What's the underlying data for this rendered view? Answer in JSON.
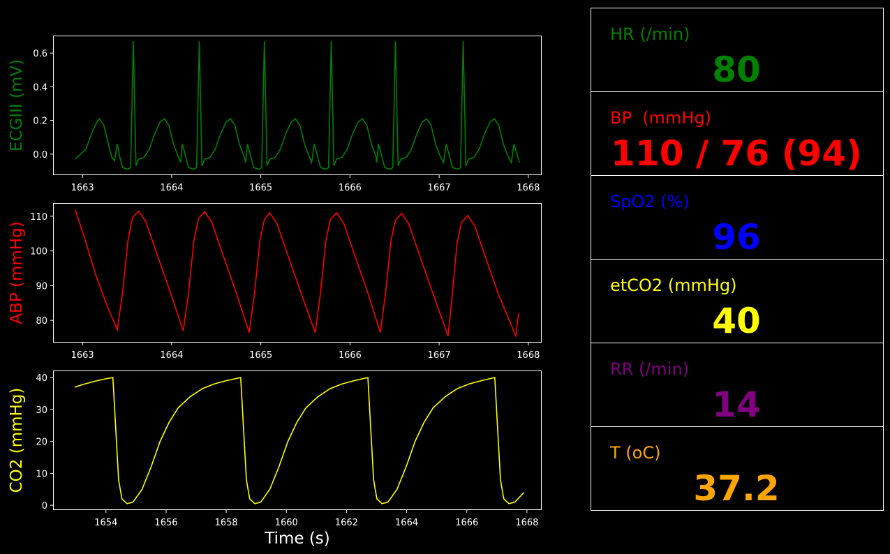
{
  "chart_data": [
    {
      "type": "line",
      "ylabel": "ECGIII (mV)",
      "xlim": [
        1662.67,
        1668.15
      ],
      "xticks": [
        1663,
        1664,
        1665,
        1666,
        1667,
        1668
      ],
      "ylim": [
        -0.125,
        0.704
      ],
      "yticks": [
        {
          "value": 0,
          "label": "0.0"
        },
        0.2,
        0.4,
        0.6
      ],
      "x": [
        1662.92,
        1662.98,
        1663.04,
        1663.1,
        1663.16,
        1663.19,
        1663.24,
        1663.29,
        1663.33,
        1663.36,
        1663.39,
        1663.42,
        1663.45,
        1663.51,
        1663.54,
        1663.57,
        1663.6,
        1663.63,
        1663.69,
        1663.75,
        1663.81,
        1663.87,
        1663.92,
        1663.97,
        1664.02,
        1664.07,
        1664.1,
        1664.12,
        1664.16,
        1664.19,
        1664.25,
        1664.28,
        1664.31,
        1664.34,
        1664.37,
        1664.43,
        1664.49,
        1664.55,
        1664.61,
        1664.66,
        1664.71,
        1664.76,
        1664.81,
        1664.83,
        1664.85,
        1664.89,
        1664.92,
        1664.98,
        1665.01,
        1665.04,
        1665.07,
        1665.1,
        1665.16,
        1665.22,
        1665.28,
        1665.34,
        1665.39,
        1665.44,
        1665.49,
        1665.54,
        1665.57,
        1665.6,
        1665.64,
        1665.67,
        1665.73,
        1665.76,
        1665.79,
        1665.82,
        1665.85,
        1665.91,
        1665.97,
        1666.03,
        1666.09,
        1666.14,
        1666.19,
        1666.24,
        1666.29,
        1666.3,
        1666.32,
        1666.36,
        1666.39,
        1666.45,
        1666.48,
        1666.51,
        1666.54,
        1666.57,
        1666.63,
        1666.69,
        1666.75,
        1666.81,
        1666.86,
        1666.91,
        1666.96,
        1667.01,
        1667.05,
        1667.08,
        1667.12,
        1667.15,
        1667.21,
        1667.24,
        1667.27,
        1667.3,
        1667.33,
        1667.39,
        1667.45,
        1667.51,
        1667.57,
        1667.62,
        1667.67,
        1667.72,
        1667.77,
        1667.81,
        1667.84,
        1667.9
      ],
      "series": [
        {
          "color": "#008000",
          "values": [
            -0.03,
            0.0,
            0.03,
            0.12,
            0.19,
            0.21,
            0.17,
            0.06,
            -0.02,
            -0.04,
            0.06,
            -0.02,
            -0.08,
            -0.09,
            -0.08,
            0.67,
            -0.07,
            -0.03,
            -0.02,
            0.03,
            0.12,
            0.19,
            0.21,
            0.17,
            0.06,
            -0.01,
            -0.05,
            0.06,
            -0.02,
            -0.08,
            -0.09,
            -0.08,
            0.67,
            -0.07,
            -0.03,
            -0.02,
            0.03,
            0.12,
            0.19,
            0.21,
            0.17,
            0.06,
            -0.01,
            -0.05,
            0.06,
            -0.02,
            -0.08,
            -0.09,
            -0.08,
            0.67,
            -0.07,
            -0.03,
            -0.02,
            0.03,
            0.12,
            0.19,
            0.21,
            0.17,
            0.06,
            -0.01,
            -0.05,
            0.06,
            -0.02,
            -0.08,
            -0.09,
            -0.08,
            0.67,
            -0.07,
            -0.03,
            -0.02,
            0.03,
            0.12,
            0.19,
            0.21,
            0.17,
            0.06,
            -0.01,
            -0.05,
            0.06,
            -0.02,
            -0.08,
            -0.09,
            -0.08,
            0.67,
            -0.07,
            -0.03,
            -0.02,
            0.03,
            0.12,
            0.19,
            0.21,
            0.17,
            0.06,
            -0.01,
            -0.05,
            0.06,
            -0.02,
            -0.08,
            -0.09,
            -0.08,
            0.67,
            -0.07,
            -0.03,
            -0.02,
            0.03,
            0.12,
            0.19,
            0.21,
            0.17,
            0.06,
            -0.01,
            -0.05,
            0.06,
            -0.05
          ]
        }
      ]
    },
    {
      "type": "line",
      "ylabel": "ABP (mmHg)",
      "xlim": [
        1662.67,
        1668.15
      ],
      "xticks": [
        1663,
        1664,
        1665,
        1666,
        1667,
        1668
      ],
      "ylim": [
        73.6,
        113.8
      ],
      "yticks": [
        80,
        90,
        100,
        110
      ],
      "x": [
        1662.92,
        1663.02,
        1663.15,
        1663.28,
        1663.39,
        1663.45,
        1663.51,
        1663.56,
        1663.63,
        1663.71,
        1663.83,
        1663.98,
        1664.13,
        1664.19,
        1664.25,
        1664.3,
        1664.37,
        1664.45,
        1664.57,
        1664.72,
        1664.87,
        1664.93,
        1664.99,
        1665.04,
        1665.1,
        1665.18,
        1665.3,
        1665.45,
        1665.61,
        1665.67,
        1665.73,
        1665.78,
        1665.85,
        1665.93,
        1666.05,
        1666.2,
        1666.34,
        1666.4,
        1666.46,
        1666.51,
        1666.58,
        1666.66,
        1666.78,
        1666.93,
        1667.1,
        1667.15,
        1667.2,
        1667.25,
        1667.32,
        1667.4,
        1667.52,
        1667.67,
        1667.86,
        1667.89
      ],
      "series": [
        {
          "color": "#ff0000",
          "values": [
            111.8,
            104,
            93,
            84,
            77.3,
            88,
            103,
            109.5,
            111.5,
            108.5,
            99.5,
            88.5,
            77,
            88,
            103,
            109.3,
            111.3,
            108.3,
            99.3,
            88.3,
            76.5,
            88,
            103,
            109,
            111,
            108,
            99,
            88,
            76.5,
            88,
            103,
            109,
            111,
            108,
            99,
            88,
            76.5,
            88,
            103,
            108.8,
            110.8,
            107.8,
            98.8,
            87.8,
            75.5,
            88,
            102,
            108.2,
            110.2,
            107.2,
            98.2,
            87.2,
            75.5,
            82
          ]
        }
      ]
    },
    {
      "type": "line",
      "ylabel": "CO2 (mmHg)",
      "xlabel": "Time (s)",
      "xlim": [
        1652.24,
        1668.49
      ],
      "xticks": [
        1654,
        1656,
        1658,
        1660,
        1662,
        1664,
        1666,
        1668
      ],
      "ylim": [
        -1.5,
        42.2
      ],
      "yticks": [
        0,
        10,
        20,
        30,
        40
      ],
      "x": [
        1652.96,
        1653.3,
        1653.7,
        1654.0,
        1654.23,
        1654.42,
        1654.53,
        1654.7,
        1654.9,
        1655.2,
        1655.5,
        1655.8,
        1656.1,
        1656.4,
        1656.8,
        1657.2,
        1657.6,
        1658.0,
        1658.48,
        1658.67,
        1658.78,
        1658.95,
        1659.15,
        1659.45,
        1659.75,
        1660.05,
        1660.35,
        1660.65,
        1661.05,
        1661.45,
        1661.85,
        1662.25,
        1662.71,
        1662.9,
        1663.01,
        1663.18,
        1663.38,
        1663.68,
        1663.98,
        1664.28,
        1664.58,
        1664.88,
        1665.28,
        1665.68,
        1666.08,
        1666.48,
        1666.93,
        1667.12,
        1667.23,
        1667.4,
        1667.6,
        1667.9
      ],
      "series": [
        {
          "color": "#ffff00",
          "values": [
            37,
            38,
            39,
            39.6,
            40,
            8,
            2,
            0.5,
            1,
            5,
            12,
            20,
            26,
            30.5,
            34,
            36.5,
            38,
            39,
            40,
            8,
            2,
            0.5,
            1,
            5,
            12,
            20,
            26,
            30.5,
            34,
            36.5,
            38,
            39,
            40,
            8,
            2,
            0.5,
            1,
            5,
            12,
            20,
            26,
            30.5,
            34,
            36.5,
            38,
            39,
            40,
            8,
            2,
            0.5,
            1,
            4
          ]
        }
      ]
    }
  ],
  "vitals": [
    {
      "label": "HR (/min)",
      "value": 80,
      "color": "#008000"
    },
    {
      "label": "BP  (mmHg)",
      "value": "110 / 76 (94)",
      "color": "#ff0000"
    },
    {
      "label": "SpO2 (%)",
      "value": 96,
      "color": "#0000ff"
    },
    {
      "label": "etCO2 (mmHg)",
      "value": 40,
      "color": "#ffff00"
    },
    {
      "label": "RR (/min)",
      "value": 14,
      "color": "#800080"
    },
    {
      "label": "T (oC)",
      "value": 37.2,
      "color": "#ffa500"
    }
  ]
}
